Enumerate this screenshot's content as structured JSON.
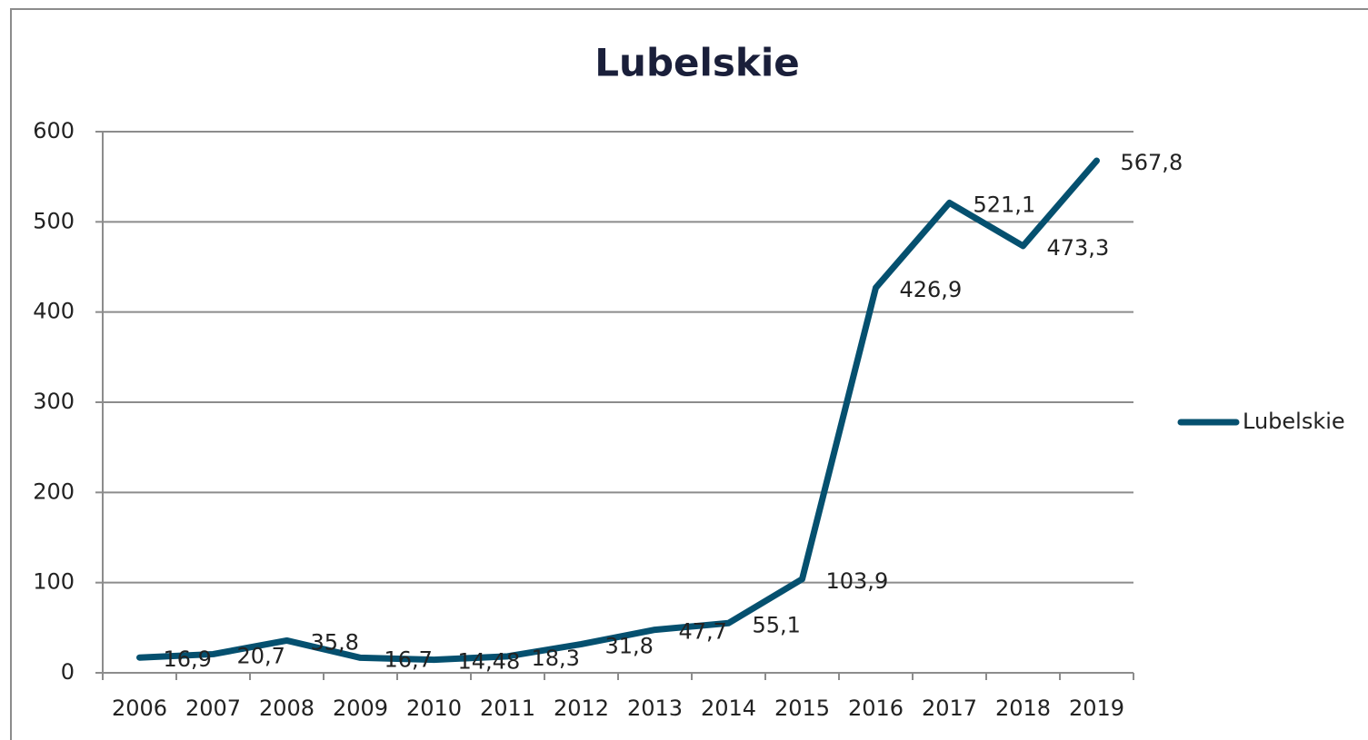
{
  "chart_data": {
    "type": "line",
    "title": "Lubelskie",
    "categories": [
      "2006",
      "2007",
      "2008",
      "2009",
      "2010",
      "2011",
      "2012",
      "2013",
      "2014",
      "2015",
      "2016",
      "2017",
      "2018",
      "2019"
    ],
    "series": [
      {
        "name": "Lubelskie",
        "color": "#05506f",
        "values": [
          16.9,
          20.7,
          35.8,
          16.7,
          14.48,
          18.3,
          31.8,
          47.7,
          55.1,
          103.9,
          426.9,
          521.1,
          473.3,
          567.8
        ],
        "value_labels": [
          "16,9",
          "20,7",
          "35,8",
          "16,7",
          "14,48",
          "18,3",
          "31,8",
          "47,7",
          "55,1",
          "103,9",
          "426,9",
          "521,1",
          "473,3",
          "567,8"
        ]
      }
    ],
    "ylim": [
      0,
      600
    ],
    "yticks": [
      0,
      100,
      200,
      300,
      400,
      500,
      600
    ],
    "grid": true,
    "legend": "right"
  }
}
